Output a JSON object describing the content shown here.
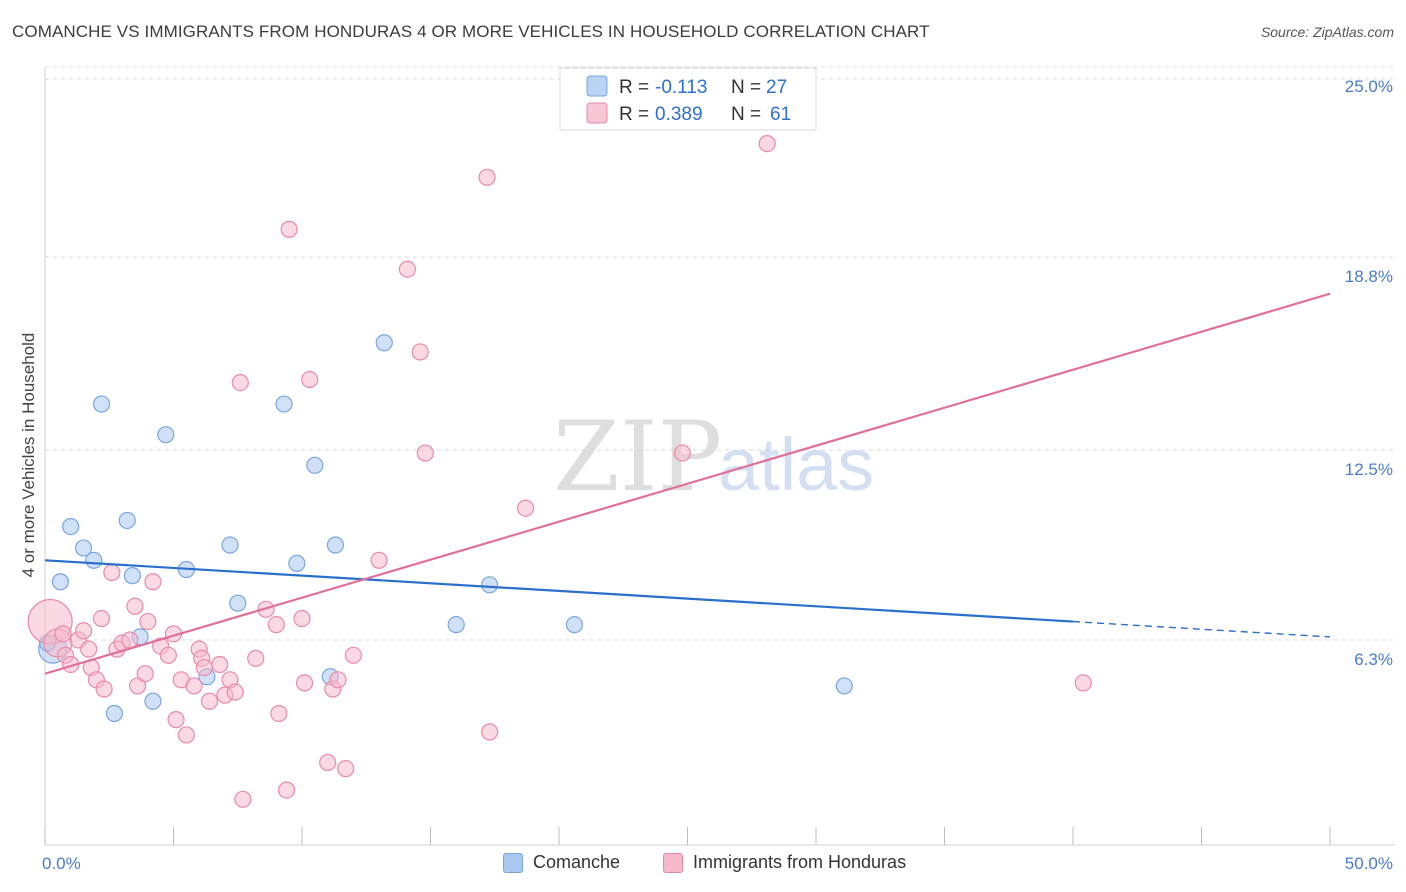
{
  "title": "COMANCHE VS IMMIGRANTS FROM HONDURAS 4 OR MORE VEHICLES IN HOUSEHOLD CORRELATION CHART",
  "source": "Source: ZipAtlas.com",
  "colors": {
    "blue_fill": "#a9c8f0",
    "blue_stroke": "#7aa6e0",
    "blue_line": "#2a6fcb",
    "pink_fill": "#f6b9cb",
    "pink_stroke": "#e98aa8",
    "pink_line": "#e0709a",
    "grid": "#d9d9d9",
    "tick_text": "#4a7cc7"
  },
  "chart_data": {
    "type": "scatter",
    "title": "COMANCHE VS IMMIGRANTS FROM HONDURAS 4 OR MORE VEHICLES IN HOUSEHOLD CORRELATION CHART",
    "xlabel": "",
    "ylabel": "4 or more Vehicles in Household",
    "xlim": [
      0,
      50
    ],
    "ylim": [
      0,
      25
    ],
    "x_tick_labels": [
      "0.0%",
      "50.0%"
    ],
    "y_ticks": [
      6.3,
      12.5,
      18.8,
      25.0
    ],
    "y_tick_labels": [
      "6.3%",
      "12.5%",
      "18.8%",
      "25.0%"
    ],
    "grid": true,
    "legend": {
      "position": "top-center",
      "entries": [
        {
          "series": "Comanche",
          "r_label": "R =",
          "r_value": "-0.113",
          "n_label": "N =",
          "n_value": "27"
        },
        {
          "series": "Immigrants from Honduras",
          "r_label": "R =",
          "r_value": "0.389",
          "n_label": "N =",
          "n_value": "61"
        }
      ]
    },
    "series": [
      {
        "name": "Comanche",
        "color": "blue",
        "trend": {
          "x": [
            0,
            40,
            50
          ],
          "y": [
            8.9,
            6.9,
            6.4
          ],
          "solid_until": 40
        },
        "points": [
          [
            0.3,
            6.0,
            2
          ],
          [
            0.6,
            8.2,
            1
          ],
          [
            1.0,
            10.0,
            1
          ],
          [
            1.5,
            9.3,
            1
          ],
          [
            1.9,
            8.9,
            1
          ],
          [
            2.2,
            14.0,
            1
          ],
          [
            2.7,
            3.9,
            1
          ],
          [
            3.2,
            10.2,
            1
          ],
          [
            3.4,
            8.4,
            1
          ],
          [
            3.7,
            6.4,
            1
          ],
          [
            4.2,
            4.3,
            1
          ],
          [
            4.7,
            13.0,
            1
          ],
          [
            5.5,
            8.6,
            1
          ],
          [
            6.3,
            5.1,
            1
          ],
          [
            7.2,
            9.4,
            1
          ],
          [
            7.5,
            7.5,
            1
          ],
          [
            9.3,
            14.0,
            1
          ],
          [
            9.8,
            8.8,
            1
          ],
          [
            10.5,
            12.0,
            1
          ],
          [
            11.1,
            5.1,
            1
          ],
          [
            11.3,
            9.4,
            1
          ],
          [
            13.2,
            16.0,
            1
          ],
          [
            16.0,
            6.8,
            1
          ],
          [
            17.3,
            8.1,
            1
          ],
          [
            20.6,
            6.8,
            1
          ],
          [
            31.1,
            4.8,
            1
          ],
          [
            0.1,
            6.2,
            1
          ]
        ]
      },
      {
        "name": "Immigrants from Honduras",
        "color": "pink",
        "trend": {
          "x": [
            0,
            50
          ],
          "y": [
            5.2,
            17.6
          ],
          "solid_until": 50
        },
        "points": [
          [
            0.2,
            6.9,
            3
          ],
          [
            0.5,
            6.2,
            2
          ],
          [
            0.7,
            6.5,
            1
          ],
          [
            0.8,
            5.8,
            1
          ],
          [
            1.0,
            5.5,
            1
          ],
          [
            1.3,
            6.3,
            1
          ],
          [
            1.5,
            6.6,
            1
          ],
          [
            1.7,
            6.0,
            1
          ],
          [
            1.8,
            5.4,
            1
          ],
          [
            2.0,
            5.0,
            1
          ],
          [
            2.2,
            7.0,
            1
          ],
          [
            2.3,
            4.7,
            1
          ],
          [
            2.6,
            8.5,
            1
          ],
          [
            2.8,
            6.0,
            1
          ],
          [
            3.0,
            6.2,
            1
          ],
          [
            3.3,
            6.3,
            1
          ],
          [
            3.5,
            7.4,
            1
          ],
          [
            3.6,
            4.8,
            1
          ],
          [
            3.9,
            5.2,
            1
          ],
          [
            4.0,
            6.9,
            1
          ],
          [
            4.2,
            8.2,
            1
          ],
          [
            4.5,
            6.1,
            1
          ],
          [
            4.8,
            5.8,
            1
          ],
          [
            5.0,
            6.5,
            1
          ],
          [
            5.1,
            3.7,
            1
          ],
          [
            5.3,
            5.0,
            1
          ],
          [
            5.5,
            3.2,
            1
          ],
          [
            5.8,
            4.8,
            1
          ],
          [
            6.0,
            6.0,
            1
          ],
          [
            6.1,
            5.7,
            1
          ],
          [
            6.2,
            5.4,
            1
          ],
          [
            6.4,
            4.3,
            1
          ],
          [
            6.8,
            5.5,
            1
          ],
          [
            7.0,
            4.5,
            1
          ],
          [
            7.2,
            5.0,
            1
          ],
          [
            7.4,
            4.6,
            1
          ],
          [
            7.6,
            14.7,
            1
          ],
          [
            7.7,
            1.1,
            1
          ],
          [
            8.2,
            5.7,
            1
          ],
          [
            8.6,
            7.3,
            1
          ],
          [
            9.0,
            6.8,
            1
          ],
          [
            9.1,
            3.9,
            1
          ],
          [
            9.4,
            1.4,
            1
          ],
          [
            9.5,
            19.7,
            1
          ],
          [
            10.0,
            7.0,
            1
          ],
          [
            10.1,
            4.9,
            1
          ],
          [
            10.3,
            14.8,
            1
          ],
          [
            11.0,
            2.3,
            1
          ],
          [
            11.2,
            4.7,
            1
          ],
          [
            11.4,
            5.0,
            1
          ],
          [
            11.7,
            2.1,
            1
          ],
          [
            12.0,
            5.8,
            1
          ],
          [
            13.0,
            8.9,
            1
          ],
          [
            14.1,
            18.4,
            1
          ],
          [
            14.6,
            15.7,
            1
          ],
          [
            14.8,
            12.4,
            1
          ],
          [
            17.2,
            21.4,
            1
          ],
          [
            17.3,
            3.3,
            1
          ],
          [
            18.7,
            10.6,
            1
          ],
          [
            24.8,
            12.4,
            1
          ],
          [
            28.1,
            22.5,
            1
          ],
          [
            40.4,
            4.9,
            1
          ]
        ]
      }
    ]
  }
}
